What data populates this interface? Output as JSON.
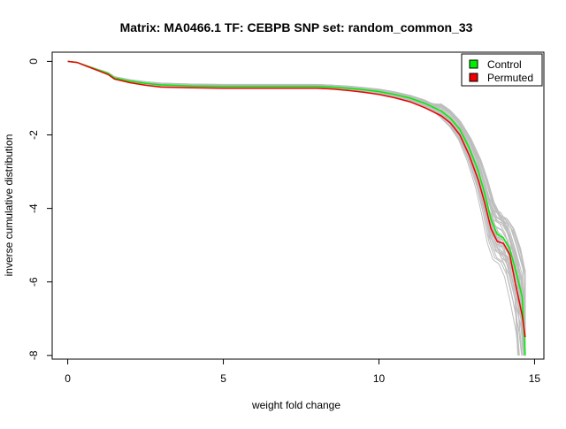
{
  "chart_data": {
    "type": "line",
    "title": "Matrix: MA0466.1 TF: CEBPB SNP set: random_common_33",
    "xlabel": "weight fold change",
    "ylabel": "inverse cumulative distribution",
    "xlim": [
      -0.5,
      15.3
    ],
    "ylim": [
      -8.1,
      0.25
    ],
    "x_ticks": [
      0,
      5,
      10,
      15
    ],
    "x_tick_labels": [
      "0",
      "5",
      "10",
      "15"
    ],
    "y_ticks": [
      0,
      -2,
      -4,
      -6,
      -8
    ],
    "y_tick_labels": [
      "0",
      "-2",
      "-4",
      "-6",
      "-8"
    ],
    "grid": false,
    "legend_position": "top-right",
    "background_lines": {
      "color": "#bebebe",
      "count": 40,
      "description_hidden": true
    },
    "series": [
      {
        "name": "Control",
        "color": "#00ee00",
        "x": [
          0,
          0.3,
          0.6,
          1.0,
          1.3,
          1.5,
          2.0,
          2.5,
          3.0,
          4.0,
          5.0,
          6.0,
          7.0,
          8.0,
          8.5,
          9.0,
          9.5,
          10.0,
          10.5,
          11.0,
          11.5,
          12.0,
          12.3,
          12.6,
          12.9,
          13.2,
          13.4,
          13.6,
          13.8,
          14.0,
          14.2,
          14.4,
          14.6,
          14.7
        ],
        "y": [
          0,
          -0.03,
          -0.12,
          -0.24,
          -0.33,
          -0.45,
          -0.54,
          -0.6,
          -0.64,
          -0.67,
          -0.68,
          -0.68,
          -0.68,
          -0.68,
          -0.7,
          -0.73,
          -0.77,
          -0.82,
          -0.9,
          -1.0,
          -1.15,
          -1.35,
          -1.55,
          -1.85,
          -2.35,
          -3.0,
          -3.6,
          -4.3,
          -4.7,
          -4.8,
          -5.1,
          -5.7,
          -6.4,
          -8.0
        ]
      },
      {
        "name": "Permuted",
        "color": "#ee0000",
        "x": [
          0,
          0.3,
          0.6,
          1.0,
          1.3,
          1.5,
          2.0,
          2.5,
          3.0,
          4.0,
          5.0,
          6.0,
          7.0,
          8.0,
          8.5,
          9.0,
          9.5,
          10.0,
          10.5,
          11.0,
          11.5,
          12.0,
          12.3,
          12.6,
          12.9,
          13.2,
          13.4,
          13.6,
          13.8,
          14.0,
          14.2,
          14.4,
          14.6,
          14.7
        ],
        "y": [
          0,
          -0.03,
          -0.13,
          -0.26,
          -0.36,
          -0.48,
          -0.58,
          -0.65,
          -0.7,
          -0.72,
          -0.73,
          -0.73,
          -0.73,
          -0.73,
          -0.75,
          -0.79,
          -0.84,
          -0.9,
          -0.99,
          -1.1,
          -1.27,
          -1.48,
          -1.68,
          -2.0,
          -2.55,
          -3.25,
          -3.85,
          -4.55,
          -4.9,
          -4.95,
          -5.25,
          -6.1,
          -6.9,
          -7.5
        ]
      }
    ]
  }
}
